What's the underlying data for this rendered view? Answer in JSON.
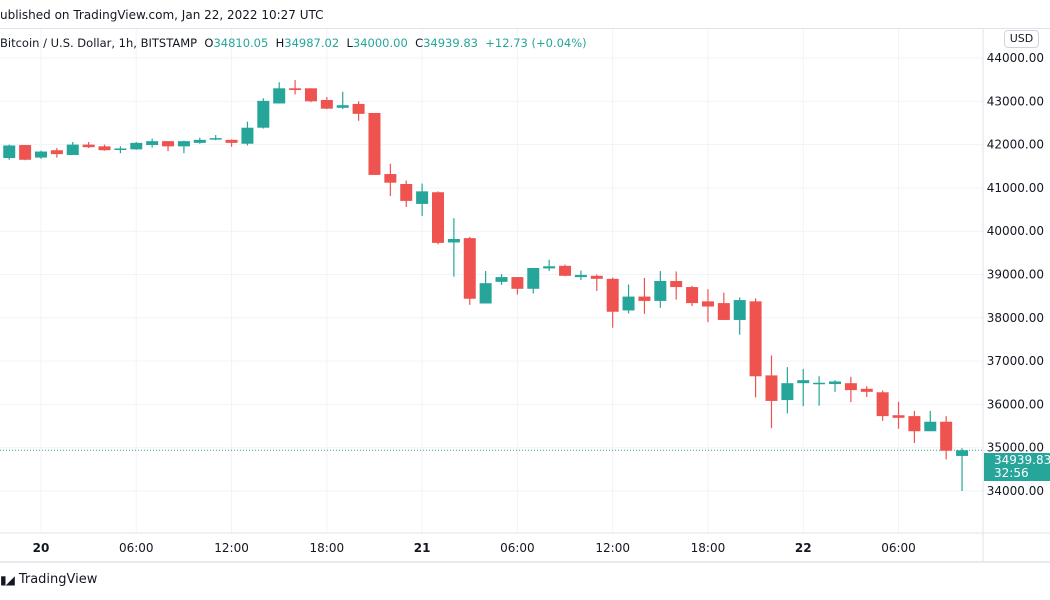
{
  "header": {
    "published": "ublished on TradingView.com, Jan 22, 2022 10:27 UTC"
  },
  "legend": {
    "symbol": "Bitcoin / U.S. Dollar, 1h, BITSTAMP",
    "o_label": "O",
    "o_value": "34810.05",
    "h_label": "H",
    "h_value": "34987.02",
    "l_label": "L",
    "l_value": "34000.00",
    "c_label": "C",
    "c_value": "34939.83",
    "change": "+12.73 (+0.04%)"
  },
  "currency_button": "USD",
  "last_price": {
    "value": "34939.83",
    "countdown": "32:56"
  },
  "footer": {
    "brand": "TradingView",
    "logo_text": "TV"
  },
  "colors": {
    "up": "#26a69a",
    "down": "#ef5350",
    "grid": "#f0f3fa"
  },
  "chart_data": {
    "type": "candlestick",
    "interval": "1h",
    "y_range": [
      33600,
      44300
    ],
    "y_ticks": [
      "44000.00",
      "43000.00",
      "42000.00",
      "41000.00",
      "40000.00",
      "39000.00",
      "38000.00",
      "37000.00",
      "36000.00",
      "35000.00",
      "34000.00"
    ],
    "x_ticks": [
      {
        "label": "20",
        "time": "2022-01-20 00:00",
        "bold": true
      },
      {
        "label": "06:00",
        "time": "2022-01-20 06:00"
      },
      {
        "label": "12:00",
        "time": "2022-01-20 12:00"
      },
      {
        "label": "18:00",
        "time": "2022-01-20 18:00"
      },
      {
        "label": "21",
        "time": "2022-01-21 00:00",
        "bold": true
      },
      {
        "label": "06:00",
        "time": "2022-01-21 06:00"
      },
      {
        "label": "12:00",
        "time": "2022-01-21 12:00"
      },
      {
        "label": "18:00",
        "time": "2022-01-21 18:00"
      },
      {
        "label": "22",
        "time": "2022-01-22 00:00",
        "bold": true
      },
      {
        "label": "06:00",
        "time": "2022-01-22 06:00"
      }
    ],
    "grid": true,
    "columns": [
      "time",
      "open",
      "high",
      "low",
      "close"
    ],
    "candles": [
      [
        "2022-01-19 22:00",
        41690,
        42000,
        41650,
        41980
      ],
      [
        "2022-01-19 23:00",
        41990,
        41990,
        41640,
        41650
      ],
      [
        "2022-01-20 00:00",
        41700,
        41860,
        41670,
        41840
      ],
      [
        "2022-01-20 01:00",
        41870,
        41920,
        41700,
        41780
      ],
      [
        "2022-01-20 02:00",
        41760,
        42060,
        41760,
        42000
      ],
      [
        "2022-01-20 03:00",
        42000,
        42060,
        41920,
        41940
      ],
      [
        "2022-01-20 04:00",
        41960,
        42000,
        41860,
        41870
      ],
      [
        "2022-01-20 05:00",
        41890,
        41960,
        41800,
        41910
      ],
      [
        "2022-01-20 06:00",
        41890,
        42060,
        41880,
        42040
      ],
      [
        "2022-01-20 07:00",
        41990,
        42140,
        41930,
        42080
      ],
      [
        "2022-01-20 08:00",
        42080,
        42080,
        41850,
        41960
      ],
      [
        "2022-01-20 09:00",
        41960,
        42090,
        41800,
        42080
      ],
      [
        "2022-01-20 10:00",
        42040,
        42160,
        42020,
        42110
      ],
      [
        "2022-01-20 11:00",
        42120,
        42220,
        42100,
        42150
      ],
      [
        "2022-01-20 12:00",
        42110,
        42120,
        41950,
        42040
      ],
      [
        "2022-01-20 13:00",
        42020,
        42530,
        41980,
        42390
      ],
      [
        "2022-01-20 14:00",
        42390,
        43070,
        42370,
        43010
      ],
      [
        "2022-01-20 15:00",
        42950,
        43440,
        42950,
        43300
      ],
      [
        "2022-01-20 16:00",
        43300,
        43490,
        43160,
        43260
      ],
      [
        "2022-01-20 17:00",
        43300,
        43300,
        42980,
        43000
      ],
      [
        "2022-01-20 18:00",
        43030,
        43100,
        42820,
        42830
      ],
      [
        "2022-01-20 19:00",
        42850,
        43220,
        42820,
        42910
      ],
      [
        "2022-01-20 20:00",
        42940,
        43000,
        42550,
        42710
      ],
      [
        "2022-01-20 21:00",
        42730,
        42730,
        41300,
        41300
      ],
      [
        "2022-01-20 22:00",
        41320,
        41560,
        40810,
        41120
      ],
      [
        "2022-01-20 23:00",
        41090,
        41170,
        40560,
        40700
      ],
      [
        "2022-01-21 00:00",
        40630,
        41100,
        40350,
        40920
      ],
      [
        "2022-01-21 01:00",
        40900,
        40920,
        39700,
        39730
      ],
      [
        "2022-01-21 02:00",
        39740,
        40300,
        38950,
        39820
      ],
      [
        "2022-01-21 03:00",
        39840,
        39870,
        38300,
        38440
      ],
      [
        "2022-01-21 04:00",
        38330,
        39080,
        38330,
        38800
      ],
      [
        "2022-01-21 05:00",
        38830,
        39010,
        38760,
        38940
      ],
      [
        "2022-01-21 06:00",
        38940,
        38940,
        38540,
        38670
      ],
      [
        "2022-01-21 07:00",
        38670,
        39150,
        38560,
        39150
      ],
      [
        "2022-01-21 08:00",
        39140,
        39340,
        39080,
        39190
      ],
      [
        "2022-01-21 09:00",
        39200,
        39230,
        38960,
        38970
      ],
      [
        "2022-01-21 10:00",
        38940,
        39090,
        38870,
        38990
      ],
      [
        "2022-01-21 11:00",
        38970,
        39000,
        38620,
        38900
      ],
      [
        "2022-01-21 12:00",
        38900,
        38930,
        37770,
        38140
      ],
      [
        "2022-01-21 13:00",
        38170,
        38770,
        38100,
        38490
      ],
      [
        "2022-01-21 14:00",
        38490,
        38920,
        38090,
        38390
      ],
      [
        "2022-01-21 15:00",
        38390,
        39080,
        38230,
        38850
      ],
      [
        "2022-01-21 16:00",
        38850,
        39070,
        38420,
        38710
      ],
      [
        "2022-01-21 17:00",
        38710,
        38740,
        38270,
        38340
      ],
      [
        "2022-01-21 18:00",
        38380,
        38660,
        37900,
        38260
      ],
      [
        "2022-01-21 19:00",
        38340,
        38580,
        37950,
        37950
      ],
      [
        "2022-01-21 20:00",
        37950,
        38470,
        37610,
        38410
      ],
      [
        "2022-01-21 21:00",
        38380,
        38450,
        36160,
        36650
      ],
      [
        "2022-01-21 22:00",
        36670,
        37130,
        35450,
        36080
      ],
      [
        "2022-01-21 23:00",
        36100,
        36860,
        35790,
        36490
      ],
      [
        "2022-01-22 00:00",
        36490,
        36820,
        35960,
        36560
      ],
      [
        "2022-01-22 01:00",
        36480,
        36650,
        35970,
        36500
      ],
      [
        "2022-01-22 02:00",
        36470,
        36560,
        36290,
        36530
      ],
      [
        "2022-01-22 03:00",
        36490,
        36640,
        36050,
        36330
      ],
      [
        "2022-01-22 04:00",
        36360,
        36420,
        36170,
        36290
      ],
      [
        "2022-01-22 05:00",
        36280,
        36320,
        35620,
        35730
      ],
      [
        "2022-01-22 06:00",
        35750,
        36060,
        35440,
        35690
      ],
      [
        "2022-01-22 07:00",
        35730,
        35850,
        35110,
        35380
      ],
      [
        "2022-01-22 08:00",
        35380,
        35850,
        35380,
        35600
      ],
      [
        "2022-01-22 09:00",
        35600,
        35730,
        34730,
        34930
      ],
      [
        "2022-01-22 10:00",
        34810.05,
        34987.02,
        34000.0,
        34939.83
      ]
    ],
    "last_price": 34939.83
  }
}
